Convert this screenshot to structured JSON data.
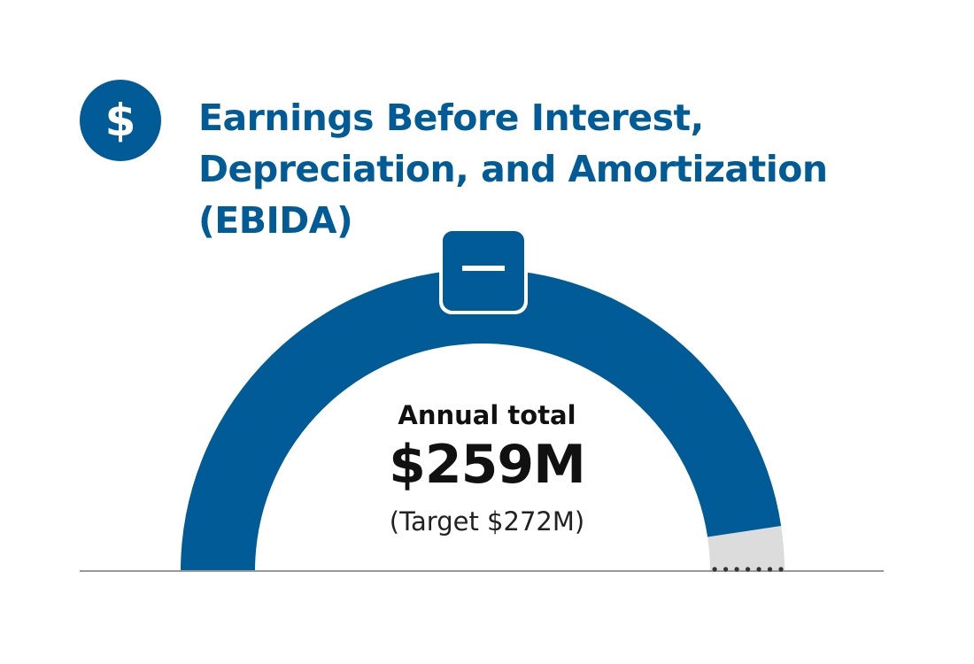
{
  "header": {
    "icon": "dollar-icon",
    "icon_glyph": "$",
    "title_lines": [
      "Earnings Before Interest,",
      "Depreciation, and Amortization",
      "(EBIDA)"
    ]
  },
  "chart_data": {
    "type": "gauge",
    "label": "Annual total",
    "value_text": "$259M",
    "target_text": "(Target $272M)",
    "value": 259,
    "target": 272,
    "unit": "$M",
    "status_indicator": "minus",
    "colors": {
      "value": "#005b96",
      "remainder": "#dcdcdc",
      "baseline": "#999999",
      "dots": "#333333"
    }
  }
}
